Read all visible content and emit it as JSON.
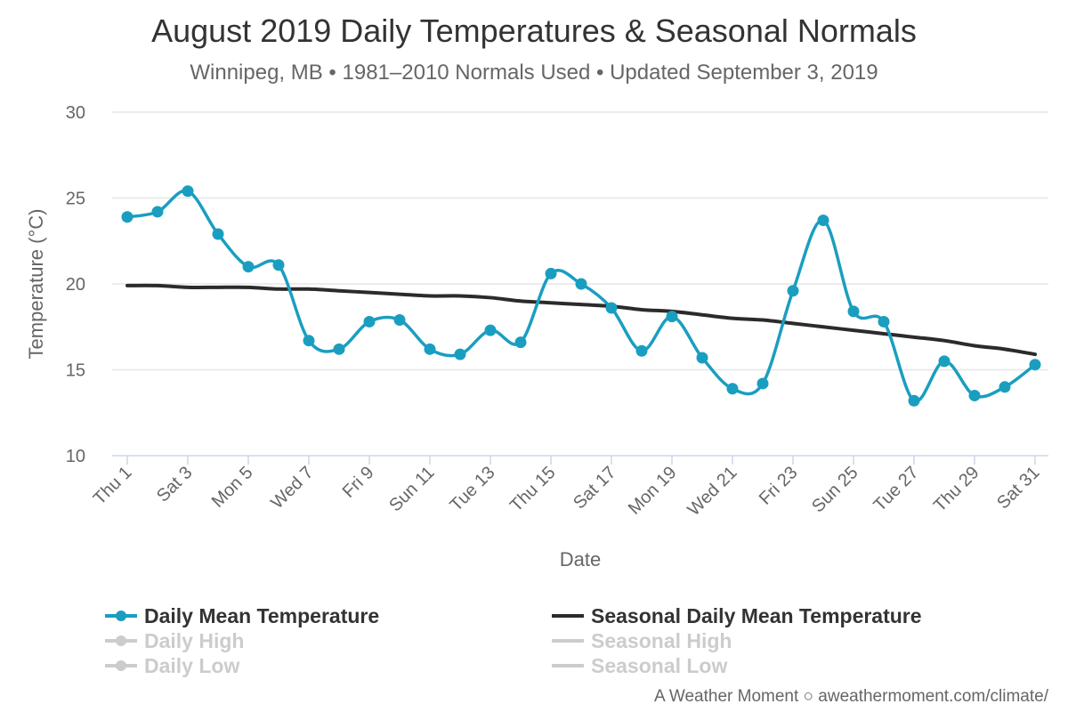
{
  "header": {
    "title": "August 2019 Daily Temperatures & Seasonal Normals",
    "subtitle": "Winnipeg, MB • 1981–2010 Normals Used • Updated September 3, 2019"
  },
  "colors": {
    "mean": "#1a9ec0",
    "normal": "#2b2b2b",
    "hidden": "#cccccc",
    "grid": "#e6e6e6",
    "axis": "#ccd6eb"
  },
  "chart_data": {
    "type": "line",
    "title": "August 2019 Daily Temperatures & Seasonal Normals",
    "subtitle": "Winnipeg, MB • 1981–2010 Normals Used • Updated September 3, 2019",
    "xlabel": "Date",
    "ylabel": "Temperature (°C)",
    "ylim": [
      10,
      30
    ],
    "yticks": [
      10,
      15,
      20,
      25,
      30
    ],
    "grid": true,
    "legend_position": "bottom",
    "x": [
      1,
      2,
      3,
      4,
      5,
      6,
      7,
      8,
      9,
      10,
      11,
      12,
      13,
      14,
      15,
      16,
      17,
      18,
      19,
      20,
      21,
      22,
      23,
      24,
      25,
      26,
      27,
      28,
      29,
      30,
      31
    ],
    "x_tick_labels": [
      {
        "x": 1,
        "label": "Thu 1"
      },
      {
        "x": 3,
        "label": "Sat 3"
      },
      {
        "x": 5,
        "label": "Mon 5"
      },
      {
        "x": 7,
        "label": "Wed 7"
      },
      {
        "x": 9,
        "label": "Fri 9"
      },
      {
        "x": 11,
        "label": "Sun 11"
      },
      {
        "x": 13,
        "label": "Tue 13"
      },
      {
        "x": 15,
        "label": "Thu 15"
      },
      {
        "x": 17,
        "label": "Sat 17"
      },
      {
        "x": 19,
        "label": "Mon 19"
      },
      {
        "x": 21,
        "label": "Wed 21"
      },
      {
        "x": 23,
        "label": "Fri 23"
      },
      {
        "x": 25,
        "label": "Sun 25"
      },
      {
        "x": 27,
        "label": "Tue 27"
      },
      {
        "x": 29,
        "label": "Thu 29"
      },
      {
        "x": 31,
        "label": "Sat 31"
      }
    ],
    "series": [
      {
        "name": "Daily Mean Temperature",
        "visible": true,
        "markers": true,
        "values": [
          23.9,
          24.2,
          25.4,
          22.9,
          21.0,
          21.1,
          16.7,
          16.2,
          17.8,
          17.9,
          16.2,
          15.9,
          17.3,
          16.6,
          20.6,
          20.0,
          18.6,
          16.1,
          18.1,
          15.7,
          13.9,
          14.2,
          19.6,
          23.7,
          18.4,
          17.8,
          13.2,
          15.5,
          13.5,
          14.0,
          15.3
        ]
      },
      {
        "name": "Seasonal Daily Mean Temperature",
        "visible": true,
        "markers": false,
        "values": [
          19.9,
          19.9,
          19.8,
          19.8,
          19.8,
          19.7,
          19.7,
          19.6,
          19.5,
          19.4,
          19.3,
          19.3,
          19.2,
          19.0,
          18.9,
          18.8,
          18.7,
          18.5,
          18.4,
          18.2,
          18.0,
          17.9,
          17.7,
          17.5,
          17.3,
          17.1,
          16.9,
          16.7,
          16.4,
          16.2,
          15.9
        ]
      }
    ],
    "legend": [
      {
        "name": "Daily Mean Temperature",
        "symbol": "line-marker",
        "state": "visible"
      },
      {
        "name": "Seasonal Daily Mean Temperature",
        "symbol": "line",
        "state": "visible"
      },
      {
        "name": "Daily High",
        "symbol": "line-marker",
        "state": "hidden"
      },
      {
        "name": "Seasonal High",
        "symbol": "line",
        "state": "hidden"
      },
      {
        "name": "Daily Low",
        "symbol": "line-marker",
        "state": "hidden"
      },
      {
        "name": "Seasonal Low",
        "symbol": "line",
        "state": "hidden"
      }
    ]
  },
  "credits": "A Weather Moment ○ aweathermoment.com/climate/"
}
